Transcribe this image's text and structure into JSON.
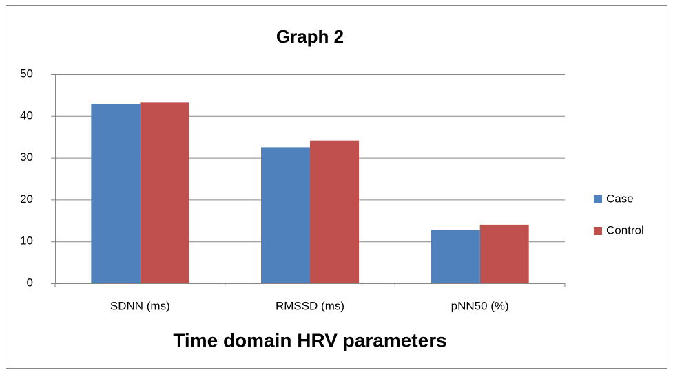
{
  "chart_data": {
    "type": "bar",
    "title": "Graph 2",
    "x_label": "Time domain HRV parameters",
    "categories": [
      "SDNN (ms)",
      "RMSSD (ms)",
      "pNN50 (%)"
    ],
    "series": [
      {
        "name": "Case",
        "color": "#4f81bd",
        "values": [
          42.9,
          32.5,
          12.7
        ]
      },
      {
        "name": "Control",
        "color": "#c0504d",
        "values": [
          43.2,
          34.1,
          14.0
        ]
      }
    ],
    "ylim": [
      0,
      50
    ],
    "yticks": [
      0,
      10,
      20,
      30,
      40,
      50
    ],
    "grid": true,
    "legend": "right"
  }
}
